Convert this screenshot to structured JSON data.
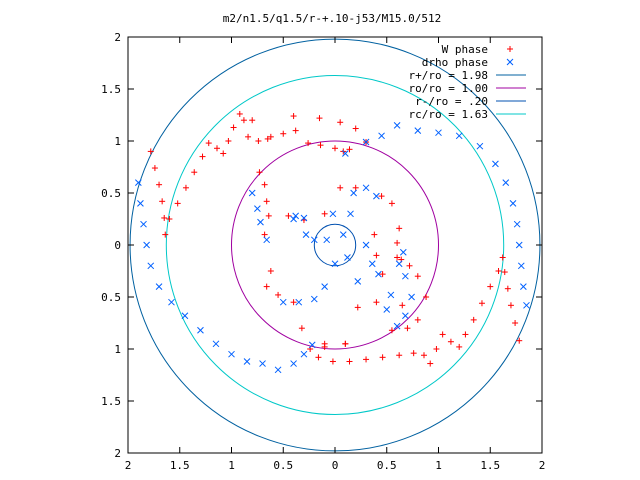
{
  "chart_data": {
    "type": "scatter",
    "title": "m2/n1.5/q1.5/r-+.10-j53/M15.0/512",
    "xlim": [
      -2,
      2
    ],
    "ylim": [
      -2,
      2
    ],
    "x_ticks": [
      -2,
      -1.5,
      -1,
      -0.5,
      0,
      0.5,
      1,
      1.5,
      2
    ],
    "y_ticks": [
      -2,
      -1.5,
      -1,
      -0.5,
      0,
      0.5,
      1,
      1.5,
      2
    ],
    "x_tick_labels": [
      "2",
      "1.5",
      "1",
      "0.5",
      "0",
      "0.5",
      "1",
      "1.5",
      "2"
    ],
    "y_tick_labels": [
      "2",
      "1.5",
      "1",
      "0.5",
      "0",
      "0.5",
      "1",
      "1.5",
      "2"
    ],
    "grid": false,
    "legend_position": "top-right",
    "series": [
      {
        "name": "W phase",
        "marker": "+",
        "color": "#ff0000",
        "points": [
          [
            -1.78,
            0.9
          ],
          [
            -1.74,
            0.74
          ],
          [
            -1.7,
            0.58
          ],
          [
            -1.67,
            0.42
          ],
          [
            -1.65,
            0.26
          ],
          [
            -1.64,
            0.1
          ],
          [
            -1.6,
            0.25
          ],
          [
            -1.52,
            0.4
          ],
          [
            -1.44,
            0.55
          ],
          [
            -1.36,
            0.7
          ],
          [
            -1.28,
            0.85
          ],
          [
            -1.22,
            0.98
          ],
          [
            -1.14,
            0.93
          ],
          [
            -1.08,
            0.88
          ],
          [
            -1.03,
            1.0
          ],
          [
            -0.98,
            1.13
          ],
          [
            -0.92,
            1.26
          ],
          [
            -0.88,
            1.2
          ],
          [
            -0.84,
            1.04
          ],
          [
            -0.74,
            1.0
          ],
          [
            -0.62,
            1.04
          ],
          [
            -0.5,
            1.07
          ],
          [
            -0.38,
            1.1
          ],
          [
            -0.26,
            0.98
          ],
          [
            -0.14,
            0.96
          ],
          [
            0.0,
            0.93
          ],
          [
            0.08,
            0.9
          ],
          [
            0.14,
            0.92
          ],
          [
            0.3,
            0.99
          ],
          [
            0.2,
            1.12
          ],
          [
            0.05,
            1.18
          ],
          [
            -0.15,
            1.22
          ],
          [
            -0.4,
            1.24
          ],
          [
            -0.65,
            1.02
          ],
          [
            -0.8,
            1.2
          ],
          [
            -0.73,
            0.7
          ],
          [
            -0.68,
            0.58
          ],
          [
            -0.66,
            0.42
          ],
          [
            -0.64,
            0.28
          ],
          [
            -0.45,
            0.28
          ],
          [
            -0.3,
            0.24
          ],
          [
            -0.1,
            0.3
          ],
          [
            0.05,
            0.55
          ],
          [
            0.2,
            0.55
          ],
          [
            0.45,
            0.47
          ],
          [
            0.38,
            0.1
          ],
          [
            0.4,
            -0.1
          ],
          [
            0.46,
            -0.28
          ],
          [
            0.6,
            -0.12
          ],
          [
            0.65,
            -0.58
          ],
          [
            0.4,
            -0.55
          ],
          [
            0.22,
            -0.6
          ],
          [
            0.1,
            -0.95
          ],
          [
            -0.1,
            -0.95
          ],
          [
            -0.32,
            -0.8
          ],
          [
            -0.4,
            -0.55
          ],
          [
            -0.55,
            -0.48
          ],
          [
            -0.62,
            -0.25
          ],
          [
            -0.66,
            -0.4
          ],
          [
            -0.68,
            0.1
          ],
          [
            1.78,
            -0.92
          ],
          [
            1.74,
            -0.75
          ],
          [
            1.7,
            -0.58
          ],
          [
            1.67,
            -0.42
          ],
          [
            1.64,
            -0.26
          ],
          [
            1.62,
            -0.12
          ],
          [
            1.58,
            -0.25
          ],
          [
            1.5,
            -0.4
          ],
          [
            1.42,
            -0.56
          ],
          [
            1.34,
            -0.72
          ],
          [
            1.26,
            -0.86
          ],
          [
            1.2,
            -0.98
          ],
          [
            1.12,
            -0.93
          ],
          [
            1.04,
            -0.86
          ],
          [
            0.98,
            -1.0
          ],
          [
            0.92,
            -1.14
          ],
          [
            0.86,
            -1.06
          ],
          [
            0.76,
            -1.04
          ],
          [
            0.62,
            -1.06
          ],
          [
            0.46,
            -1.08
          ],
          [
            0.3,
            -1.1
          ],
          [
            0.14,
            -1.12
          ],
          [
            -0.02,
            -1.12
          ],
          [
            -0.16,
            -1.08
          ],
          [
            -0.24,
            -1.0
          ],
          [
            -0.1,
            -0.98
          ],
          [
            0.1,
            -0.95
          ],
          [
            0.55,
            -0.82
          ],
          [
            0.7,
            -0.8
          ],
          [
            0.8,
            -0.72
          ],
          [
            0.88,
            -0.5
          ],
          [
            0.8,
            -0.3
          ],
          [
            0.72,
            -0.2
          ],
          [
            0.64,
            -0.14
          ],
          [
            0.6,
            0.02
          ],
          [
            0.62,
            0.16
          ],
          [
            0.55,
            0.4
          ]
        ]
      },
      {
        "name": "drho phase",
        "marker": "x",
        "color": "#0060ff",
        "points": [
          [
            -1.9,
            0.6
          ],
          [
            -1.88,
            0.4
          ],
          [
            -1.85,
            0.2
          ],
          [
            -1.82,
            0.0
          ],
          [
            -1.78,
            -0.2
          ],
          [
            -1.7,
            -0.4
          ],
          [
            -1.58,
            -0.55
          ],
          [
            -1.45,
            -0.68
          ],
          [
            -1.3,
            -0.82
          ],
          [
            -1.15,
            -0.95
          ],
          [
            -1.0,
            -1.05
          ],
          [
            -0.85,
            -1.12
          ],
          [
            -0.7,
            -1.14
          ],
          [
            -0.55,
            -1.2
          ],
          [
            -0.4,
            -1.14
          ],
          [
            -0.3,
            -1.05
          ],
          [
            -0.22,
            -0.96
          ],
          [
            -0.5,
            -0.55
          ],
          [
            -0.35,
            -0.55
          ],
          [
            -0.2,
            -0.52
          ],
          [
            -0.1,
            -0.4
          ],
          [
            0.0,
            -0.18
          ],
          [
            0.12,
            -0.12
          ],
          [
            -0.28,
            0.1
          ],
          [
            -0.3,
            0.26
          ],
          [
            -0.38,
            0.28
          ],
          [
            -0.2,
            0.05
          ],
          [
            -0.08,
            0.05
          ],
          [
            0.08,
            0.1
          ],
          [
            0.15,
            0.3
          ],
          [
            0.18,
            0.5
          ],
          [
            0.3,
            0.55
          ],
          [
            0.4,
            0.47
          ],
          [
            0.3,
            0.0
          ],
          [
            0.36,
            -0.18
          ],
          [
            0.42,
            -0.28
          ],
          [
            0.54,
            -0.48
          ],
          [
            0.5,
            -0.62
          ],
          [
            0.62,
            -0.18
          ],
          [
            0.68,
            -0.3
          ],
          [
            0.74,
            -0.5
          ],
          [
            0.68,
            -0.68
          ],
          [
            0.6,
            -0.78
          ],
          [
            -0.8,
            0.5
          ],
          [
            -0.75,
            0.35
          ],
          [
            -0.72,
            0.22
          ],
          [
            -0.66,
            0.05
          ],
          [
            0.45,
            1.05
          ],
          [
            0.6,
            1.15
          ],
          [
            0.8,
            1.1
          ],
          [
            1.0,
            1.08
          ],
          [
            1.2,
            1.05
          ],
          [
            1.4,
            0.95
          ],
          [
            1.55,
            0.78
          ],
          [
            1.65,
            0.6
          ],
          [
            1.72,
            0.4
          ],
          [
            1.76,
            0.2
          ],
          [
            1.78,
            0.0
          ],
          [
            1.8,
            -0.2
          ],
          [
            1.82,
            -0.4
          ],
          [
            1.85,
            -0.58
          ],
          [
            0.3,
            0.99
          ],
          [
            0.1,
            0.88
          ],
          [
            -0.4,
            0.25
          ],
          [
            0.66,
            -0.07
          ],
          [
            0.22,
            -0.35
          ],
          [
            -0.02,
            0.3
          ]
        ]
      },
      {
        "name": "r+/ro = 1.98",
        "radius": 1.98,
        "color": "#0060a0"
      },
      {
        "name": "ro/ro = 1.00",
        "radius": 1.0,
        "color": "#a000a0"
      },
      {
        "name": "r-/ro = .20",
        "radius": 0.2,
        "color": "#0050b0"
      },
      {
        "name": "rc/ro = 1.63",
        "radius": 1.63,
        "color": "#00c8c8"
      }
    ]
  }
}
